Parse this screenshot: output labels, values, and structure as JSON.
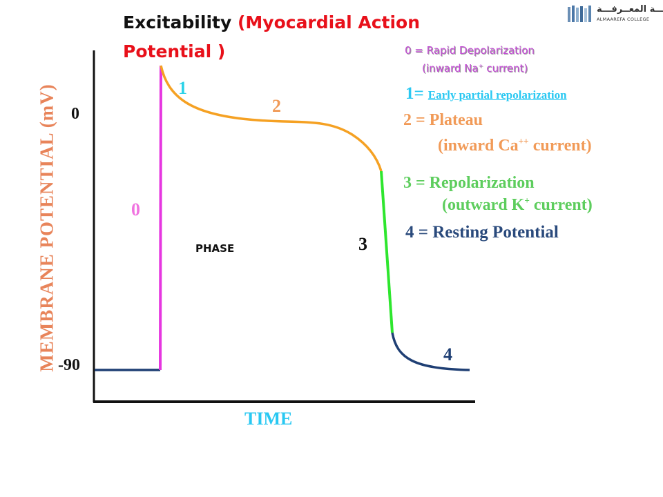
{
  "title": {
    "part1": "Excitability ",
    "part2": "(Myocardial Action Potential )"
  },
  "logo": {
    "arabic": "كليـــة المعــرفـــة",
    "english": "ALMAAREFA COLLEGE",
    "icon": "college-logo-icon"
  },
  "axes": {
    "ylabel": "MEMBRANE  POTENTIAL (mV)",
    "xlabel": "TIME",
    "ticks": [
      "0",
      "-90"
    ]
  },
  "phase_word": "PHASE",
  "phase_numbers": [
    "0",
    "1",
    "2",
    "3",
    "4"
  ],
  "legend": {
    "p0_line1": "0 = Rapid Depolarization",
    "p0_line2_pre": "(inward Na",
    "p0_line2_sup": "+",
    "p0_line2_post": " current)",
    "p1_num": "1=",
    "p1_label": "Early partial repolarization",
    "p2_line1": "2 = Plateau",
    "p2_line2_pre": "(inward Ca",
    "p2_line2_sup": "++",
    "p2_line2_post": " current)",
    "p3_line1": "3 = Repolarization",
    "p3_line2_pre": "(outward K",
    "p3_line2_sup": "+",
    "p3_line2_post": " current)",
    "p4_line1": "4 = Resting Potential"
  },
  "colors": {
    "phase0": "#e636e0",
    "phase1": "#f5a123",
    "phase2": "#f5a123",
    "phase3": "#2ee62e",
    "phase4": "#1f3f74",
    "axis": "#111111"
  }
}
